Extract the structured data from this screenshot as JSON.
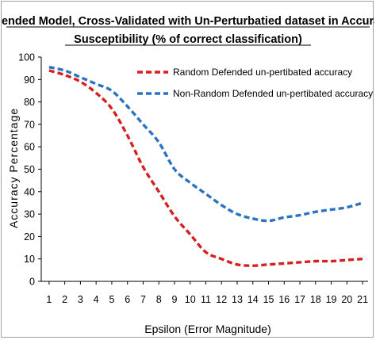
{
  "chart_data": {
    "type": "line",
    "title_line1": "Defended Model, Cross-Validated with Un-Perturbatied dataset in Accuracy",
    "title_line2": "Susceptibility (% of correct classification)",
    "xlabel": "Epsilon (Error Magnitude)",
    "ylabel": "Accuracy Percentage",
    "x": [
      1,
      2,
      3,
      4,
      5,
      6,
      7,
      8,
      9,
      10,
      11,
      12,
      13,
      14,
      15,
      16,
      17,
      18,
      19,
      20,
      21
    ],
    "ylim": [
      0,
      100
    ],
    "yticks": [
      0,
      10,
      20,
      30,
      40,
      50,
      60,
      70,
      80,
      90,
      100
    ],
    "grid": false,
    "legend_position": "top-right",
    "series": [
      {
        "name": "Random Defended un-pertibated accuracy",
        "color": "#d62020",
        "style": "dashed",
        "values": [
          94,
          92,
          89,
          84,
          77,
          65,
          51,
          40,
          29,
          21,
          13,
          10,
          7.5,
          7,
          7.5,
          8,
          8.5,
          9,
          9,
          9.5,
          10
        ]
      },
      {
        "name": "Non-Random Defended un-pertibated accuracy",
        "color": "#2a72c4",
        "style": "dashed",
        "values": [
          95.5,
          94,
          91,
          88,
          85,
          78,
          70,
          62,
          50,
          44,
          39,
          34,
          30,
          28,
          27,
          28.5,
          29.5,
          31,
          32,
          33,
          35
        ]
      }
    ]
  }
}
